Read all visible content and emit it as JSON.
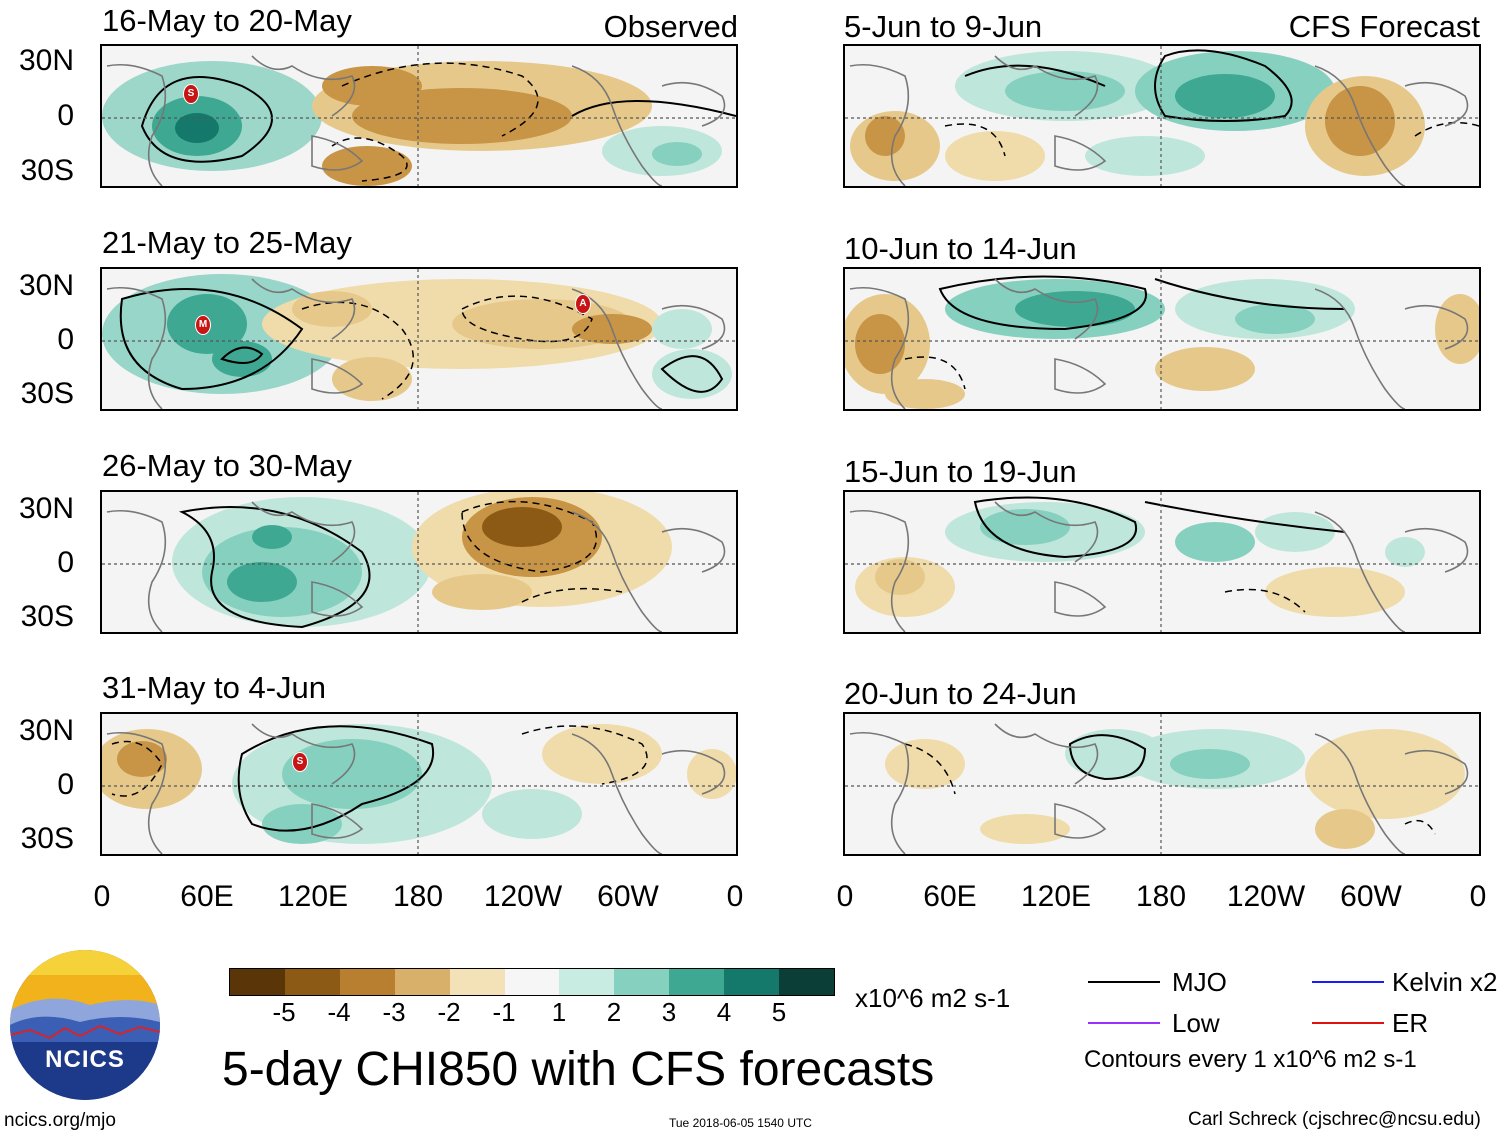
{
  "panels_left": [
    {
      "title": "16-May to 20-May",
      "type": "Observed"
    },
    {
      "title": "21-May to 25-May",
      "type": ""
    },
    {
      "title": "26-May to 30-May",
      "type": ""
    },
    {
      "title": "31-May to 4-Jun",
      "type": ""
    }
  ],
  "panels_right": [
    {
      "title": "5-Jun to 9-Jun",
      "type": "CFS Forecast"
    },
    {
      "title": "10-Jun to 14-Jun",
      "type": ""
    },
    {
      "title": "15-Jun to 19-Jun",
      "type": ""
    },
    {
      "title": "20-Jun to 24-Jun",
      "type": ""
    }
  ],
  "lat_labels": [
    "30N",
    "0",
    "30S"
  ],
  "lon_labels": [
    "0",
    "60E",
    "120E",
    "180",
    "120W",
    "60W",
    "0"
  ],
  "colorbar": {
    "ticks": [
      "-5",
      "-4",
      "-3",
      "-2",
      "-1",
      "1",
      "2",
      "3",
      "4",
      "5"
    ],
    "units": "x10^6 m2 s-1",
    "colors": [
      "#5a3508",
      "#8c5a14",
      "#b87f30",
      "#d9b06a",
      "#f3e2b8",
      "#f6f6f6",
      "#c8ece2",
      "#86d0bf",
      "#3ea892",
      "#14786a",
      "#0a3e36"
    ]
  },
  "legend": {
    "mjo": "MJO",
    "kelvin": "Kelvin x2",
    "low": "Low",
    "er": "ER",
    "contours": "Contours every 1 x10^6 m2 s-1",
    "colors": {
      "mjo": "#000000",
      "kelvin": "#1a1aff",
      "low": "#9b30ff",
      "er": "#e01010"
    }
  },
  "logo": {
    "text": "NCICS"
  },
  "title": "5-day CHI850 with CFS forecasts",
  "footer": {
    "url": "ncics.org/mjo",
    "timestamp": "Tue 2018-06-05 1540 UTC",
    "credit": "Carl Schreck (cjschrec@ncsu.edu)"
  },
  "markers": [
    {
      "panel": "left-0",
      "label": "S"
    },
    {
      "panel": "left-1",
      "label": "M"
    },
    {
      "panel": "left-1",
      "label": "A"
    },
    {
      "panel": "left-3",
      "label": "S"
    }
  ],
  "colors": {
    "brown_strong": "#a0661f",
    "brown_light": "#e6c98a",
    "green_light": "#bfe6da",
    "green_strong": "#3ea892",
    "marker": "#c81414"
  }
}
